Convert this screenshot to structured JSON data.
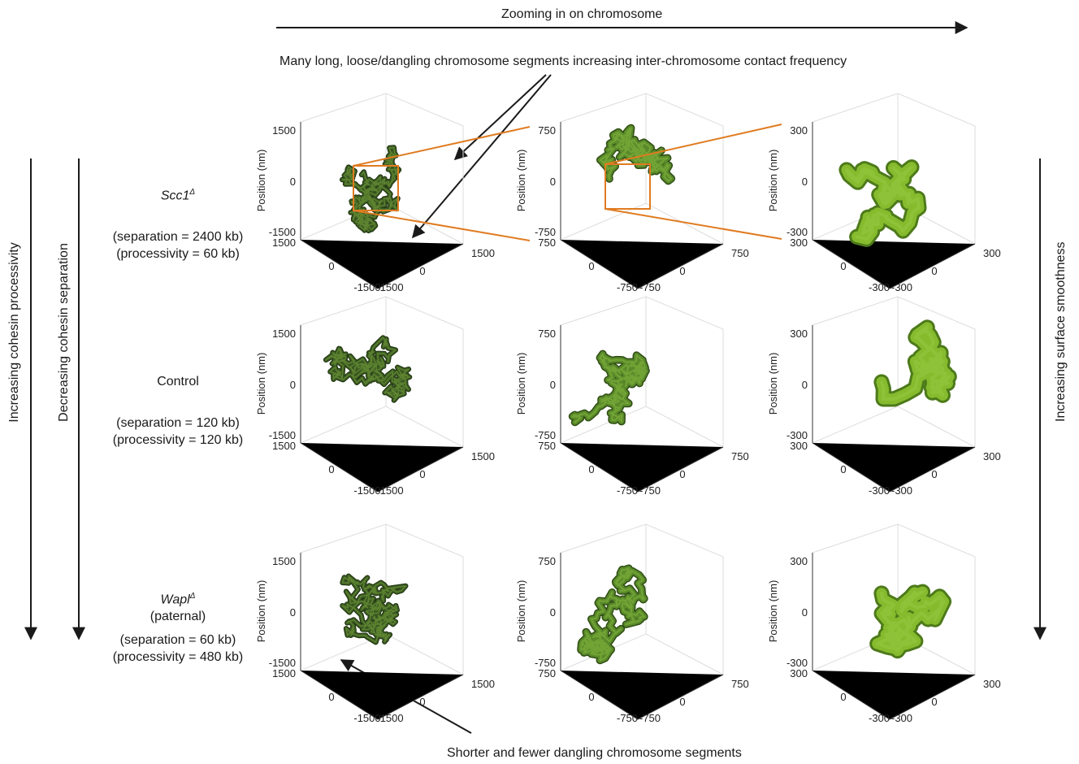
{
  "top_arrow_label": "Zooming in on chromosome",
  "annotation_top": "Many long, loose/dangling chromosome segments increasing inter-chromosome contact frequency",
  "annotation_bottom": "Shorter and fewer dangling chromosome segments",
  "left_axis_1": "Increasing cohesin processivity",
  "left_axis_2": "Decreasing cohesin separation",
  "right_axis": "Increasing surface smoothness",
  "axis_label": "Position (nm)",
  "rows": [
    {
      "name": "Scc1",
      "sup": "Δ",
      "extra": "",
      "separation": "(separation = 2400 kb)",
      "processivity": "(processivity = 60 kb)"
    },
    {
      "name": "Control",
      "sup": "",
      "extra": "",
      "separation": "(separation = 120 kb)",
      "processivity": "(processivity = 120 kb)"
    },
    {
      "name": "Wapl",
      "sup": "Δ",
      "extra": "(paternal)",
      "separation": "(separation = 60 kb)",
      "processivity": "(processivity = 480 kb)"
    }
  ],
  "columns": [
    {
      "ticks": [
        "1500",
        "0",
        "-1500"
      ],
      "color": "#3b5a22"
    },
    {
      "ticks": [
        "750",
        "0",
        "-750"
      ],
      "color": "#5a8a2a"
    },
    {
      "ticks": [
        "300",
        "0",
        "-300"
      ],
      "color": "#86bb2e"
    }
  ],
  "colors": {
    "zoom_box": "#e07b20",
    "arrow": "#1a1a1a"
  }
}
